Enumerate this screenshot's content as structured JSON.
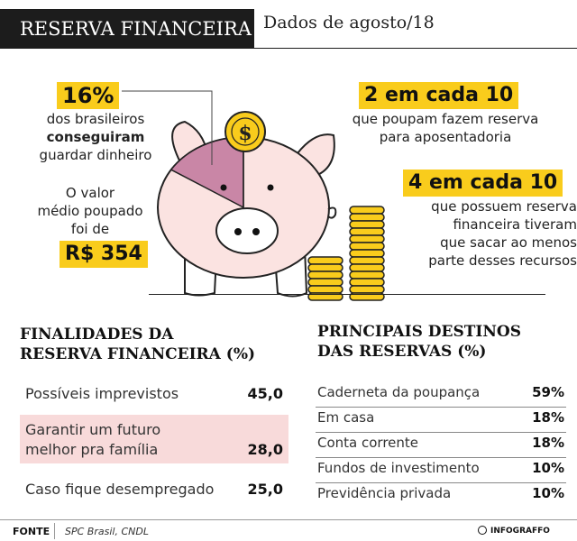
{
  "header": {
    "title": "RESERVA FINANCEIRA",
    "subtitle": "Dados de agosto/18"
  },
  "left_stats": {
    "percent": "16%",
    "percent_line1": "dos brasileiros",
    "percent_line2": "conseguiram",
    "percent_line3": "guardar dinheiro",
    "avg_line1": "O valor",
    "avg_line2": "médio poupado",
    "avg_line3": "foi de",
    "avg_value": "R$ 354"
  },
  "right_stats": {
    "stat1_value": "2 em cada 10",
    "stat1_line1": "que poupam fazem reserva",
    "stat1_line2": "para aposentadoria",
    "stat2_value": "4 em cada 10",
    "stat2_line1": "que possuem reserva",
    "stat2_line2": "financeira tiveram",
    "stat2_line3": "que sacar ao menos",
    "stat2_line4": "parte desses recursos"
  },
  "illustration": {
    "coin_symbol": "$",
    "pie_share": 0.16
  },
  "finalidades": {
    "title_line1": "FINALIDADES DA",
    "title_line2": "RESERVA FINANCEIRA (%)",
    "rows": [
      {
        "label": "Possíveis imprevistos",
        "value": "45,0"
      },
      {
        "label_line1": "Garantir um futuro",
        "label_line2": "melhor pra família",
        "value": "28,0"
      },
      {
        "label": "Caso fique desempregado",
        "value": "25,0"
      }
    ]
  },
  "destinos": {
    "title_line1": "PRINCIPAIS DESTINOS",
    "title_line2": "DAS RESERVAS (%)",
    "rows": [
      {
        "label": "Caderneta da poupança",
        "value": "59%"
      },
      {
        "label": "Em casa",
        "value": "18%"
      },
      {
        "label": "Conta corrente",
        "value": "18%"
      },
      {
        "label": "Fundos de investimento",
        "value": "10%"
      },
      {
        "label": "Previdência privada",
        "value": "10%"
      }
    ]
  },
  "footer": {
    "source_key": "FONTE",
    "source_value": "SPC Brasil, CNDL",
    "brand": "INFOGRAFFO"
  },
  "colors": {
    "highlight": "#f9cc1c",
    "pig_fill": "#fbe3e1",
    "pie_slice": "#c986a6",
    "row_highlight": "#f8dada",
    "header_bg": "#1c1c1c"
  }
}
